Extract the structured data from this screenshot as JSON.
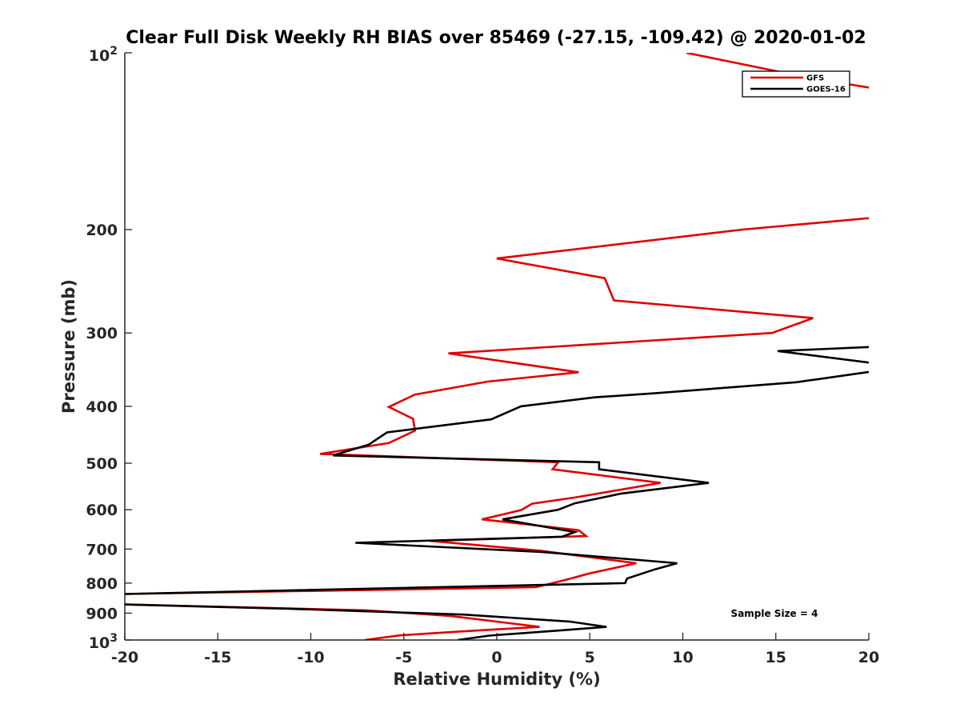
{
  "chart_data": {
    "type": "line",
    "title": "Clear Full Disk Weekly RH BIAS over 85469 (-27.15, -109.42) @ 2020-01-02",
    "xlabel": "Relative Humidity (%)",
    "ylabel": "Pressure (mb)",
    "xlim": [
      -20,
      20
    ],
    "ylim": [
      100,
      1000
    ],
    "y_scale": "log",
    "y_reversed": true,
    "x_ticks": [
      "-20",
      "-15",
      "-10",
      "-5",
      "0",
      "5",
      "10",
      "15",
      "20"
    ],
    "y_ticks": [
      {
        "value": 100,
        "base": "10",
        "exp": "2"
      },
      {
        "value": 200,
        "label": "200"
      },
      {
        "value": 300,
        "label": "300"
      },
      {
        "value": 400,
        "label": "400"
      },
      {
        "value": 500,
        "label": "500"
      },
      {
        "value": 600,
        "label": "600"
      },
      {
        "value": 700,
        "label": "700"
      },
      {
        "value": 800,
        "label": "800"
      },
      {
        "value": 900,
        "label": "900"
      },
      {
        "value": 1000,
        "base": "10",
        "exp": "3"
      }
    ],
    "grid": false,
    "legend_position": "top-right",
    "annotation": "Sample Size = 4",
    "series": [
      {
        "name": "GFS",
        "color": "#e00000",
        "points": [
          [
            10.2,
            100
          ],
          [
            16.6,
            110
          ],
          [
            21,
            116
          ],
          [
            21,
            190
          ],
          [
            13.2,
            200
          ],
          [
            0,
            224
          ],
          [
            5.8,
            242
          ],
          [
            6.3,
            264
          ],
          [
            17,
            283
          ],
          [
            14.8,
            300
          ],
          [
            -2.6,
            325
          ],
          [
            4.4,
            350
          ],
          [
            -0.5,
            363
          ],
          [
            -4.4,
            382
          ],
          [
            -5.8,
            401
          ],
          [
            -4.5,
            420
          ],
          [
            -4.4,
            440
          ],
          [
            -5.8,
            462
          ],
          [
            -9.5,
            482
          ],
          [
            3.3,
            498
          ],
          [
            3.0,
            512
          ],
          [
            8.8,
            540
          ],
          [
            4.2,
            572
          ],
          [
            1.9,
            586
          ],
          [
            1.3,
            601
          ],
          [
            -0.8,
            623
          ],
          [
            4.4,
            650
          ],
          [
            4.8,
            665
          ],
          [
            -3.6,
            678
          ],
          [
            2.4,
            705
          ],
          [
            7.5,
            740
          ],
          [
            5,
            770
          ],
          [
            3.7,
            790
          ],
          [
            2.1,
            813
          ],
          [
            -20,
            835
          ]
        ],
        "points_lower": [
          [
            -20,
            870
          ],
          [
            -7,
            890
          ],
          [
            -2.5,
            910
          ],
          [
            2.3,
            950
          ],
          [
            -2.1,
            968
          ],
          [
            -5.2,
            982
          ],
          [
            -7.1,
            1000
          ]
        ]
      },
      {
        "name": "GOES-16",
        "color": "#000000",
        "points": [
          [
            21,
            316
          ],
          [
            15.1,
            322
          ],
          [
            21,
            340
          ],
          [
            21,
            346
          ],
          [
            16.1,
            364
          ],
          [
            8.5,
            380
          ],
          [
            5.3,
            386
          ],
          [
            1.3,
            400
          ],
          [
            -0.3,
            421
          ],
          [
            -5.9,
            443
          ],
          [
            -6.9,
            465
          ],
          [
            -8.8,
            485
          ],
          [
            5.5,
            498
          ],
          [
            5.5,
            512
          ],
          [
            11.4,
            540
          ],
          [
            6.7,
            563
          ],
          [
            4.2,
            585
          ],
          [
            3.3,
            600
          ],
          [
            0.3,
            623
          ],
          [
            4.2,
            655
          ],
          [
            3.5,
            667
          ],
          [
            -7.6,
            683
          ],
          [
            2.4,
            708
          ],
          [
            9.7,
            740
          ],
          [
            8.5,
            758
          ],
          [
            7,
            786
          ],
          [
            6.9,
            800
          ],
          [
            -20,
            835
          ]
        ],
        "points_lower": [
          [
            -20,
            870
          ],
          [
            -11,
            885
          ],
          [
            -1.8,
            905
          ],
          [
            3.9,
            930
          ],
          [
            5.9,
            950
          ],
          [
            3.6,
            962
          ],
          [
            -0.4,
            983
          ],
          [
            -2.1,
            1000
          ]
        ]
      }
    ]
  }
}
